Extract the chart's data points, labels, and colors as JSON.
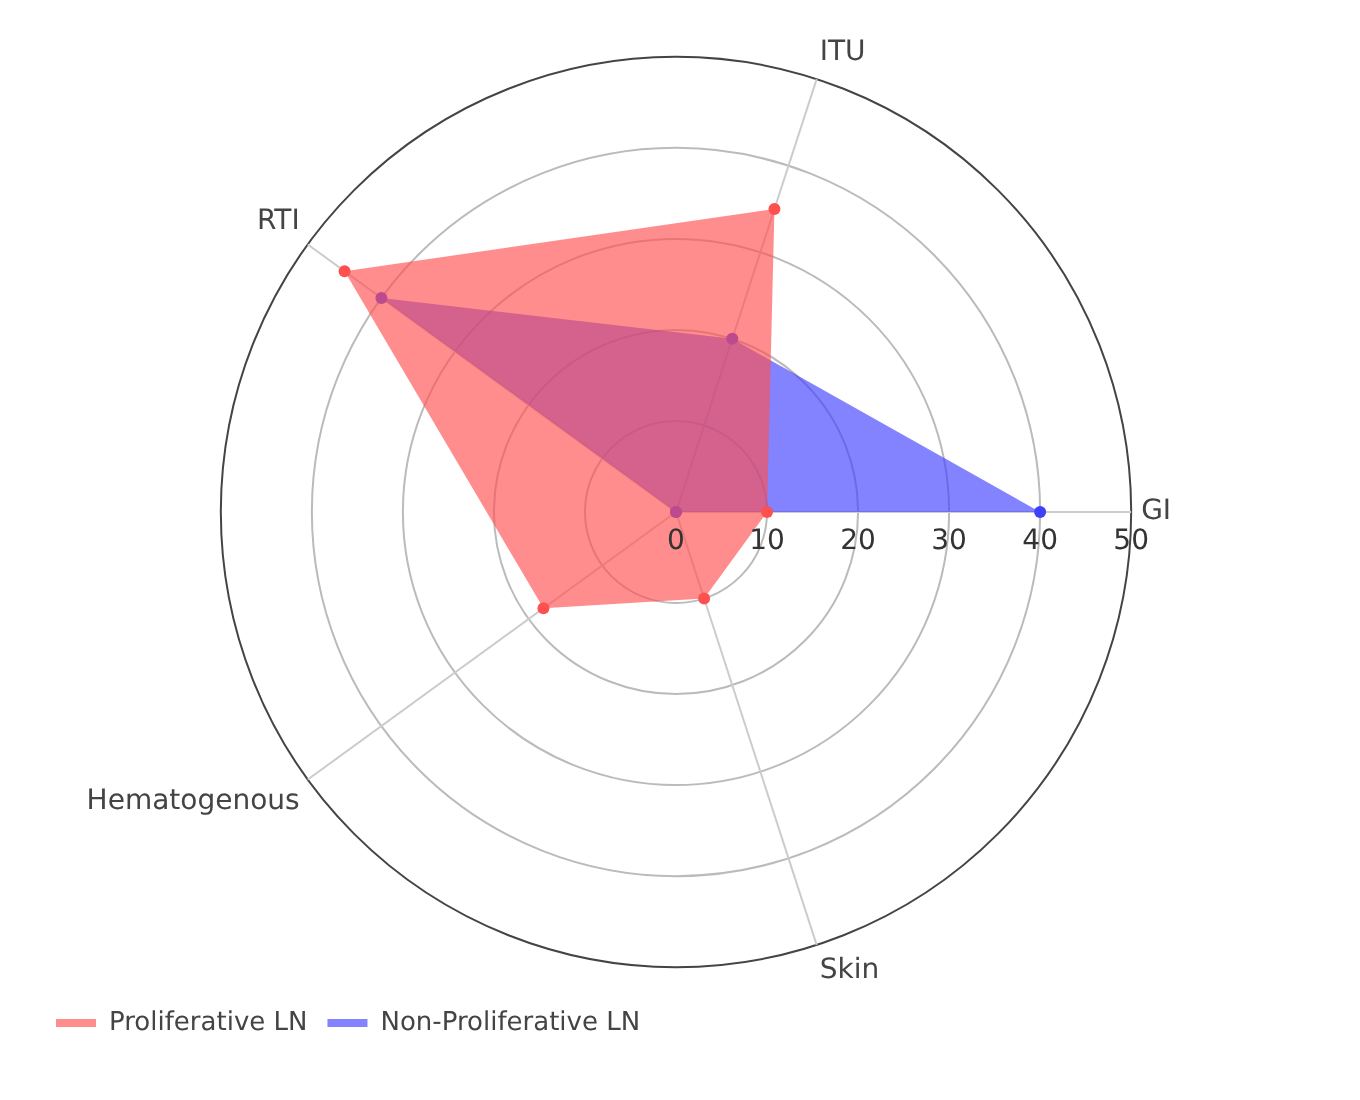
{
  "chart_data": {
    "type": "radar",
    "categories": [
      "ITU",
      "GI",
      "Skin",
      "Hematogenous",
      "RTI"
    ],
    "series": [
      {
        "name": "Proliferative LN",
        "color": "#ff5050",
        "values": [
          35,
          10,
          10,
          18,
          45
        ]
      },
      {
        "name": "Non-Proliferative LN",
        "color": "#4040ff",
        "values": [
          20,
          40,
          0,
          0,
          40
        ]
      }
    ],
    "ylim": [
      0,
      50
    ],
    "yticks": [
      0,
      10,
      20,
      30,
      40,
      50
    ],
    "grid": true,
    "legend": "bottom left",
    "marker": "circle"
  }
}
